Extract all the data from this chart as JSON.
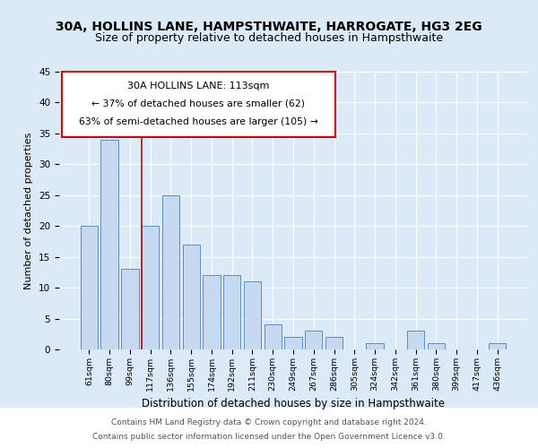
{
  "title": "30A, HOLLINS LANE, HAMPSTHWAITE, HARROGATE, HG3 2EG",
  "subtitle": "Size of property relative to detached houses in Hampsthwaite",
  "xlabel": "Distribution of detached houses by size in Hampsthwaite",
  "ylabel": "Number of detached properties",
  "bar_labels": [
    "61sqm",
    "80sqm",
    "99sqm",
    "117sqm",
    "136sqm",
    "155sqm",
    "174sqm",
    "192sqm",
    "211sqm",
    "230sqm",
    "249sqm",
    "267sqm",
    "286sqm",
    "305sqm",
    "324sqm",
    "342sqm",
    "361sqm",
    "380sqm",
    "399sqm",
    "417sqm",
    "436sqm"
  ],
  "bar_values": [
    20,
    34,
    13,
    20,
    25,
    17,
    12,
    12,
    11,
    4,
    2,
    3,
    2,
    0,
    1,
    0,
    3,
    1,
    0,
    0,
    1
  ],
  "bar_color": "#c6d9f0",
  "bar_edge_color": "#5a8fc3",
  "vline_color": "#cc0000",
  "ylim": [
    0,
    45
  ],
  "yticks": [
    0,
    5,
    10,
    15,
    20,
    25,
    30,
    35,
    40,
    45
  ],
  "annotation_title": "30A HOLLINS LANE: 113sqm",
  "annotation_line1": "← 37% of detached houses are smaller (62)",
  "annotation_line2": "63% of semi-detached houses are larger (105) →",
  "annotation_box_color": "#ffffff",
  "annotation_box_edge": "#cc0000",
  "footer_line1": "Contains HM Land Registry data © Crown copyright and database right 2024.",
  "footer_line2": "Contains public sector information licensed under the Open Government Licence v3.0.",
  "background_color": "#dce9f7",
  "plot_background": "#dce9f7",
  "footer_background": "#ffffff",
  "title_fontsize": 10,
  "subtitle_fontsize": 9
}
